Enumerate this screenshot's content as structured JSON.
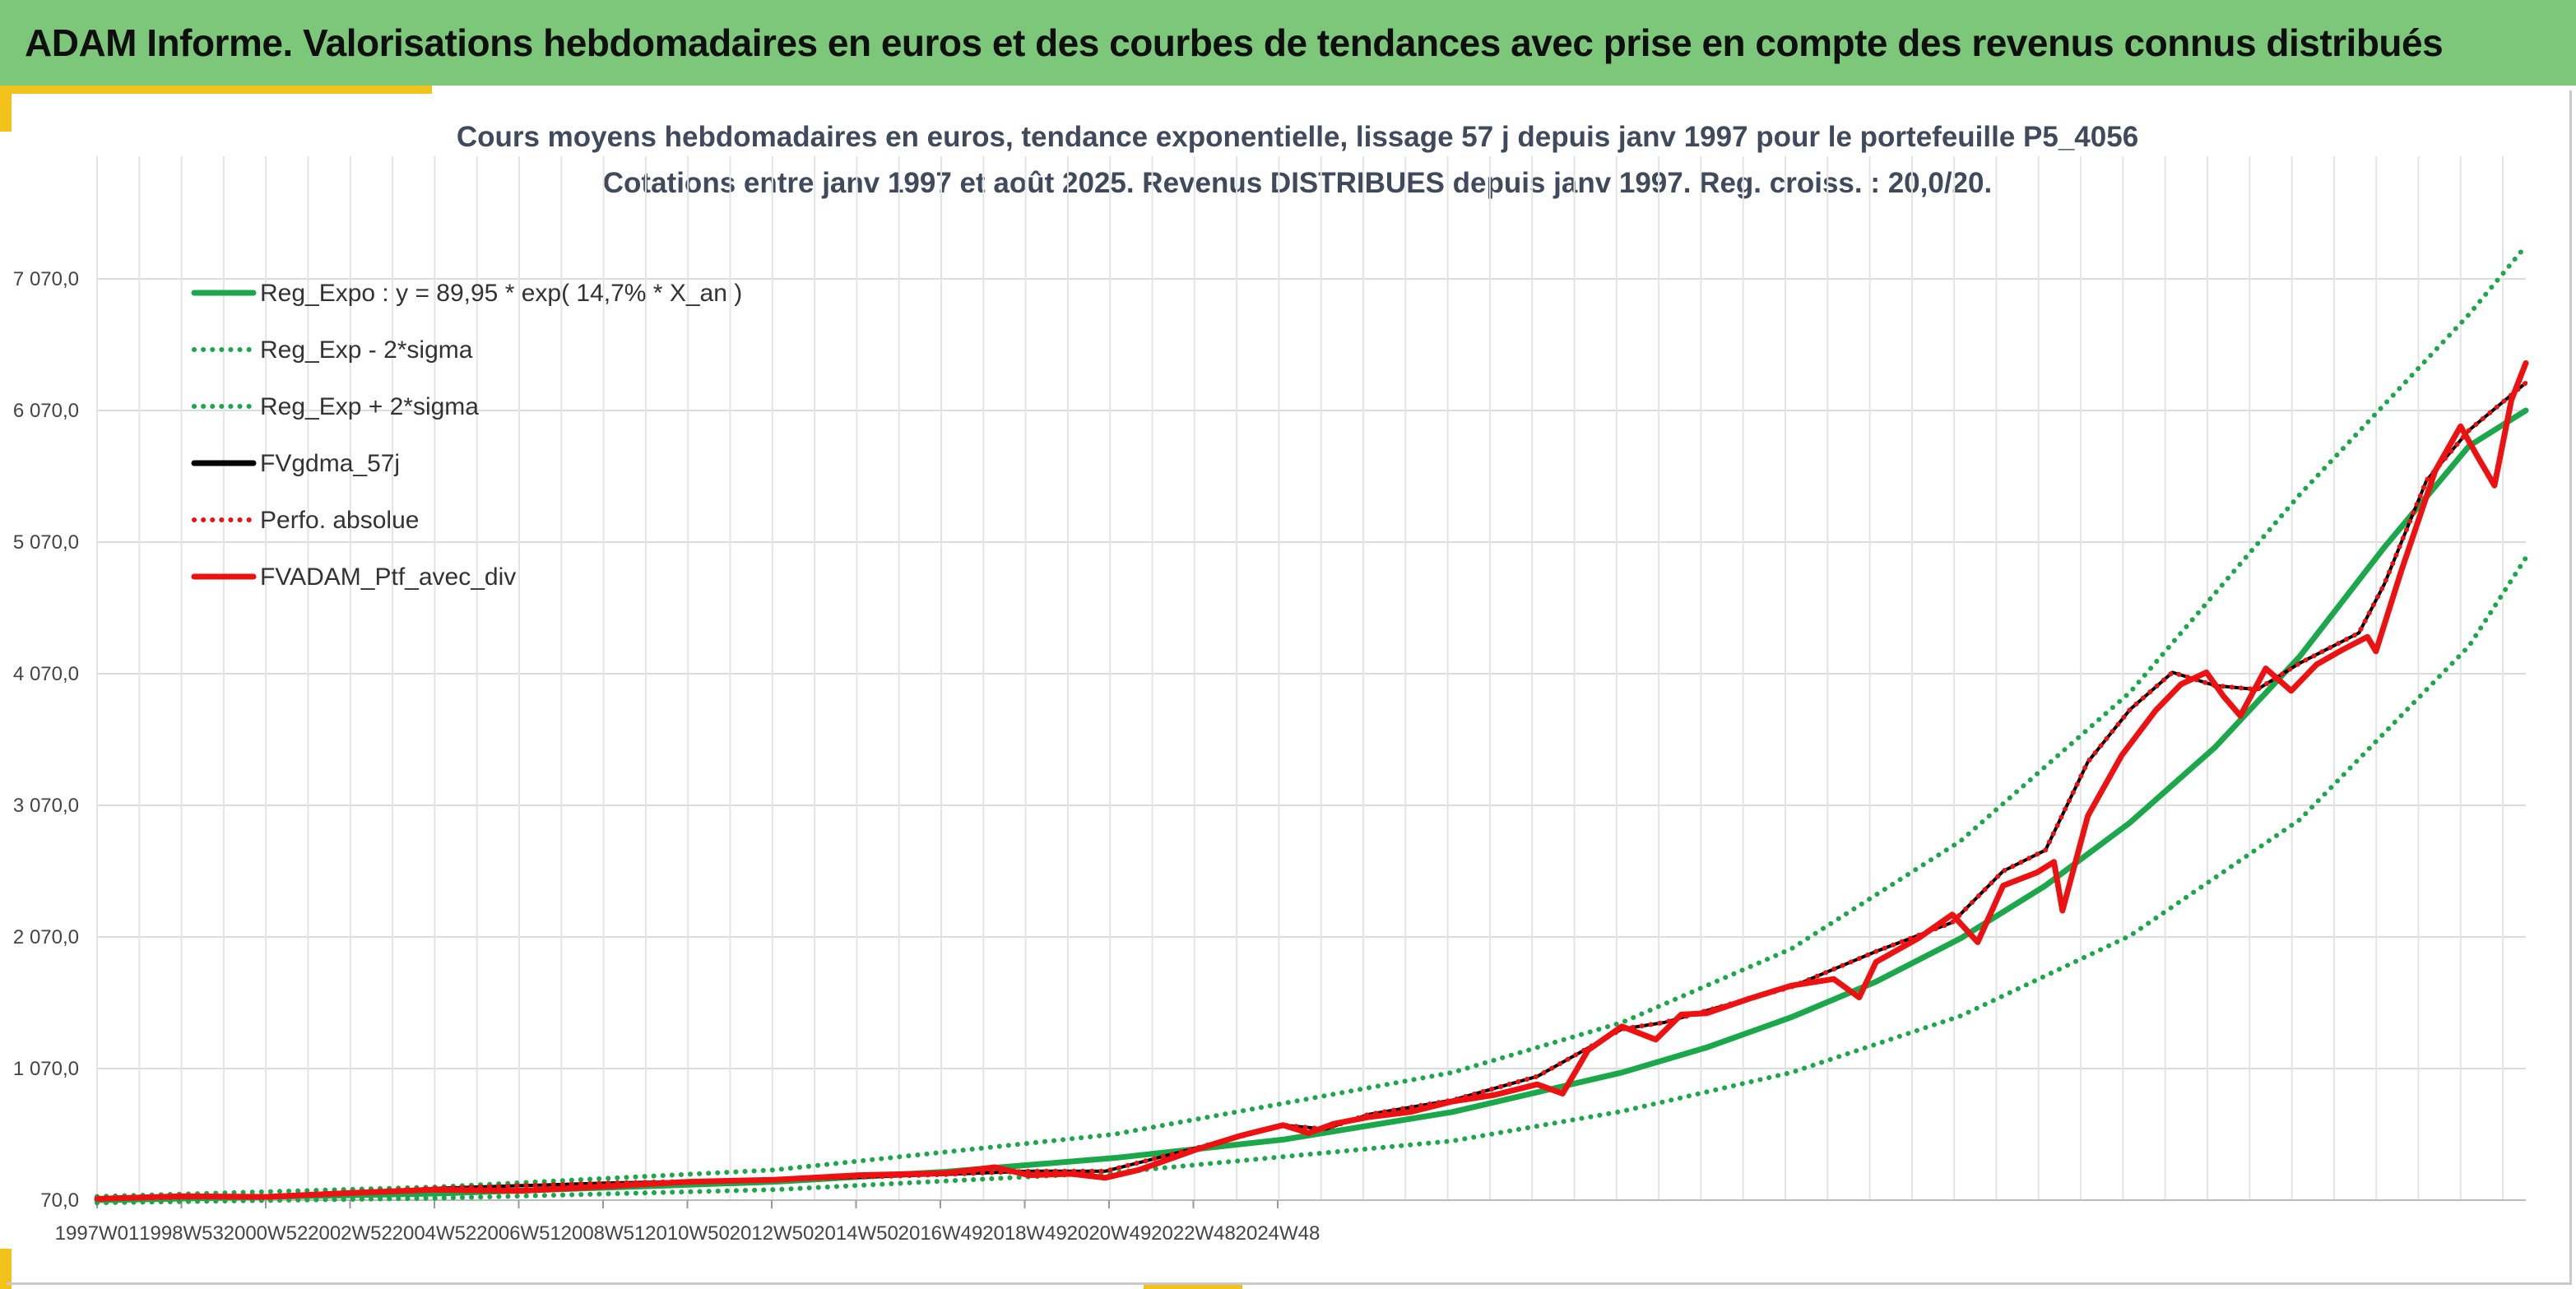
{
  "header": {
    "title": "ADAM Informe. Valorisations hebdomadaires en euros et des courbes de tendances avec prise en compte des revenus connus distribués"
  },
  "colors": {
    "header_bg": "#7dc77b",
    "accent": "#f2c21a",
    "trend": "#1aa84a",
    "smoothed": "#000000",
    "portfolio": "#ee1111"
  },
  "chart_data": {
    "type": "line",
    "title": "Cours moyens hebdomadaires en euros, tendance exponentielle, lissage 57 j depuis janv 1997 pour le portefeuille P5_4056",
    "subtitle": "Cotations entre janv 1997 et août 2025. Revenus DISTRIBUES depuis janv 1997. Reg. croiss. : 20,0/20.",
    "xlabel": "",
    "ylabel": "",
    "x_ticks": [
      "1997W01",
      "1998W53",
      "2000W52",
      "2002W52",
      "2004W52",
      "2006W51",
      "2008W51",
      "2010W50",
      "2012W50",
      "2014W50",
      "2016W49",
      "2018W49",
      "2020W49",
      "2022W48",
      "2024W48"
    ],
    "y_ticks": [
      "70,0",
      "1 070,0",
      "2 070,0",
      "3 070,0",
      "4 070,0",
      "5 070,0",
      "6 070,0",
      "7 070,0"
    ],
    "y_tick_values": [
      70,
      1070,
      2070,
      3070,
      4070,
      5070,
      6070,
      7070
    ],
    "ylim": [
      70,
      7800
    ],
    "xlim": [
      1997.0,
      2025.67
    ],
    "grid": true,
    "legend_position": "top-left",
    "series": [
      {
        "name": "Reg_Expo : y = 89,95 * exp( 14,7% *  X_an )",
        "style": "solid",
        "color": "#1aa84a",
        "x": [
          1997,
          1999,
          2001,
          2003,
          2005,
          2007,
          2009,
          2011,
          2013,
          2015,
          2016,
          2017,
          2018,
          2019,
          2020,
          2021,
          2022,
          2023,
          2024,
          2025,
          2025.67
        ],
        "y": [
          70,
          95,
          120,
          165,
          210,
          285,
          390,
          530,
          740,
          1040,
          1230,
          1460,
          1730,
          2060,
          2460,
          2940,
          3510,
          4200,
          5030,
          5800,
          6070
        ]
      },
      {
        "name": "Reg_Exp - 2*sigma",
        "style": "dotted",
        "color": "#1aa84a",
        "x": [
          1997,
          2001,
          2005,
          2009,
          2013,
          2015,
          2017,
          2019,
          2021,
          2023,
          2025,
          2025.67
        ],
        "y": [
          50,
          85,
          150,
          280,
          520,
          745,
          1040,
          1470,
          2080,
          2960,
          4280,
          4950
        ]
      },
      {
        "name": "Reg_Exp + 2*sigma",
        "style": "dotted",
        "color": "#1aa84a",
        "x": [
          1997,
          2001,
          2005,
          2009,
          2013,
          2015,
          2017,
          2019,
          2021,
          2023,
          2025,
          2025.67
        ],
        "y": [
          98,
          170,
          300,
          570,
          1040,
          1420,
          1980,
          2800,
          3930,
          5430,
          6800,
          7320
        ]
      },
      {
        "name": "FVgdma_57j",
        "style": "solid",
        "color": "#000000",
        "x": [
          1997,
          1999,
          2001,
          2003,
          2005,
          2007,
          2008,
          2008.9,
          2010,
          2011,
          2011.5,
          2012,
          2013,
          2014,
          2015,
          2015.5,
          2016,
          2017,
          2018,
          2018.9,
          2019.5,
          2020,
          2020.5,
          2021,
          2021.5,
          2022,
          2022.5,
          2023,
          2023.7,
          2024,
          2024.5,
          2025,
          2025.67
        ],
        "y": [
          80,
          100,
          160,
          200,
          225,
          265,
          290,
          290,
          470,
          640,
          610,
          720,
          830,
          1010,
          1370,
          1420,
          1510,
          1690,
          1960,
          2180,
          2570,
          2730,
          3400,
          3800,
          4080,
          3980,
          3950,
          4150,
          4380,
          4750,
          5540,
          5920,
          6280
        ]
      },
      {
        "name": "Perfo. absolue",
        "style": "dotted",
        "color": "#ee1111",
        "x": [
          1997,
          1999,
          2001,
          2003,
          2005,
          2007,
          2008,
          2008.9,
          2010,
          2011,
          2011.5,
          2012,
          2013,
          2014,
          2015,
          2015.5,
          2016,
          2017,
          2018,
          2018.9,
          2019.5,
          2020,
          2020.5,
          2021,
          2021.5,
          2022,
          2022.5,
          2023,
          2023.7,
          2024,
          2024.5,
          2025,
          2025.67
        ],
        "y": [
          80,
          100,
          160,
          200,
          225,
          265,
          290,
          290,
          470,
          640,
          610,
          720,
          830,
          1010,
          1370,
          1420,
          1510,
          1690,
          1960,
          2180,
          2570,
          2730,
          3400,
          3800,
          4080,
          3980,
          3950,
          4150,
          4380,
          4750,
          5540,
          5920,
          6280
        ]
      },
      {
        "name": "FVADAM_Ptf_avec_div",
        "style": "solid",
        "color": "#ee1111",
        "x": [
          1997,
          1998,
          1999,
          2000,
          2001,
          2002,
          2003,
          2004,
          2005,
          2006,
          2007,
          2007.6,
          2008,
          2008.5,
          2008.9,
          2009.3,
          2010,
          2010.5,
          2011,
          2011.3,
          2011.6,
          2012,
          2012.5,
          2013,
          2013.5,
          2014,
          2014.3,
          2014.6,
          2015,
          2015.4,
          2015.7,
          2016,
          2016.5,
          2017,
          2017.5,
          2017.8,
          2018,
          2018.5,
          2018.9,
          2019.2,
          2019.5,
          2019.9,
          2020.1,
          2020.2,
          2020.5,
          2020.9,
          2021.3,
          2021.6,
          2021.9,
          2022.1,
          2022.3,
          2022.6,
          2022.9,
          2023.2,
          2023.5,
          2023.8,
          2023.9,
          2024.2,
          2024.6,
          2024.9,
          2025.1,
          2025.3,
          2025.5,
          2025.67
        ],
        "y": [
          80,
          100,
          95,
          125,
          150,
          140,
          175,
          210,
          225,
          260,
          275,
          320,
          260,
          270,
          240,
          300,
          460,
          560,
          640,
          580,
          650,
          700,
          740,
          820,
          870,
          950,
          880,
          1210,
          1390,
          1290,
          1480,
          1490,
          1600,
          1700,
          1750,
          1610,
          1880,
          2060,
          2240,
          2030,
          2460,
          2560,
          2640,
          2270,
          2990,
          3450,
          3790,
          3990,
          4080,
          3900,
          3750,
          4110,
          3940,
          4140,
          4250,
          4350,
          4240,
          4850,
          5610,
          5950,
          5720,
          5500,
          6150,
          6430
        ]
      }
    ]
  }
}
